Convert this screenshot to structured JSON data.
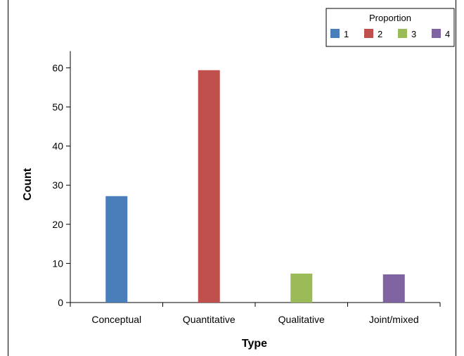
{
  "chart_data": {
    "type": "bar",
    "title": "",
    "xlabel": "Type",
    "ylabel": "Count",
    "categories": [
      "Conceptual",
      "Quantitative",
      "Qualitative",
      "Joint/mixed"
    ],
    "series": [
      {
        "name": "1",
        "color": "#4a7ebb",
        "values": [
          27.2,
          null,
          null,
          null
        ]
      },
      {
        "name": "2",
        "color": "#c0504d",
        "values": [
          null,
          59.4,
          null,
          null
        ]
      },
      {
        "name": "3",
        "color": "#9bbb59",
        "values": [
          null,
          null,
          7.4,
          null
        ]
      },
      {
        "name": "4",
        "color": "#8064a2",
        "values": [
          null,
          null,
          null,
          7.2
        ]
      }
    ],
    "ylim": [
      0,
      65
    ],
    "yticks": [
      0,
      10,
      20,
      30,
      40,
      50,
      60
    ],
    "grid": false,
    "legend": {
      "title": "Proportion",
      "placement": "top-right",
      "orientation": "horizontal"
    }
  }
}
